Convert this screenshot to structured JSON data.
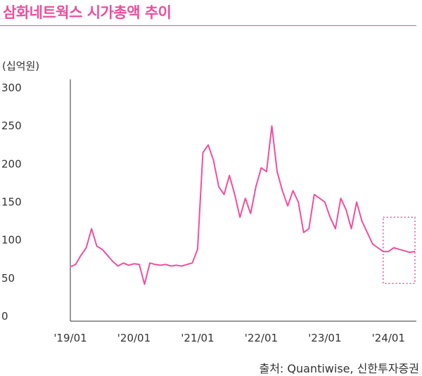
{
  "header": {
    "title": "삼화네트웍스 시가총액 추이"
  },
  "unit_label": "(십억원)",
  "source": "출처: Quantiwise, 신한투자증권",
  "colors": {
    "line": "#f04f9f",
    "title": "#ec4e9c",
    "highlight": "#ec4e9c",
    "axis": "#333333"
  },
  "chart_data": {
    "type": "line",
    "title": "삼화네트웍스 시가총액 추이",
    "ylabel": "(십억원)",
    "ylim": [
      0,
      300
    ],
    "yticks": [
      0,
      50,
      100,
      150,
      200,
      250,
      300
    ],
    "xlim": [
      "2019-01",
      "2024-06"
    ],
    "xticks": [
      {
        "date": "2019-01",
        "label": "'19/01"
      },
      {
        "date": "2020-01",
        "label": "'20/01"
      },
      {
        "date": "2021-01",
        "label": "'21/01"
      },
      {
        "date": "2022-01",
        "label": "'22/01"
      },
      {
        "date": "2023-01",
        "label": "'23/01"
      },
      {
        "date": "2024-01",
        "label": "'24/01"
      }
    ],
    "grid": false,
    "highlight_range": {
      "x": [
        "2023-12",
        "2024-06"
      ],
      "y": [
        43,
        130
      ]
    },
    "series": [
      {
        "x": [
          "2019-01",
          "2019-02",
          "2019-03",
          "2019-04",
          "2019-05",
          "2019-06",
          "2019-07",
          "2019-08",
          "2019-09",
          "2019-10",
          "2019-11",
          "2019-12",
          "2020-01",
          "2020-02",
          "2020-03",
          "2020-04",
          "2020-05",
          "2020-06",
          "2020-07",
          "2020-08",
          "2020-09",
          "2020-10",
          "2020-11",
          "2020-12",
          "2021-01",
          "2021-02",
          "2021-03",
          "2021-04",
          "2021-05",
          "2021-06",
          "2021-07",
          "2021-08",
          "2021-09",
          "2021-10",
          "2021-11",
          "2021-12",
          "2022-01",
          "2022-02",
          "2022-03",
          "2022-04",
          "2022-05",
          "2022-06",
          "2022-07",
          "2022-08",
          "2022-09",
          "2022-10",
          "2022-11",
          "2022-12",
          "2023-01",
          "2023-02",
          "2023-03",
          "2023-04",
          "2023-05",
          "2023-06",
          "2023-07",
          "2023-08",
          "2023-09",
          "2023-10",
          "2023-11",
          "2023-12",
          "2024-01",
          "2024-02",
          "2024-03",
          "2024-04",
          "2024-05",
          "2024-06"
        ],
        "y": [
          65,
          68,
          80,
          90,
          115,
          92,
          88,
          80,
          72,
          66,
          70,
          67,
          69,
          68,
          42,
          70,
          68,
          67,
          68,
          66,
          67,
          66,
          68,
          70,
          88,
          215,
          225,
          205,
          170,
          160,
          185,
          160,
          130,
          155,
          135,
          170,
          195,
          190,
          250,
          190,
          165,
          145,
          165,
          150,
          110,
          115,
          160,
          155,
          150,
          130,
          115,
          155,
          140,
          115,
          150,
          125,
          110,
          95,
          90,
          85,
          85,
          90,
          88,
          86,
          84,
          85
        ]
      }
    ]
  }
}
